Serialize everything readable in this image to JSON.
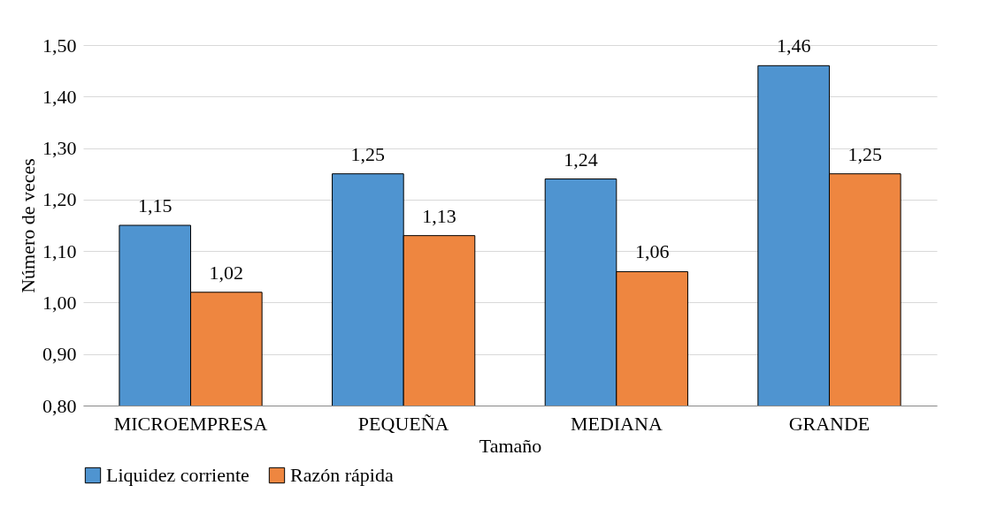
{
  "chart_data": {
    "type": "bar",
    "xlabel": "Tamaño",
    "ylabel": "Número de veces",
    "categories": [
      "MICROEMPRESA",
      "PEQUEÑA",
      "MEDIANA",
      "GRANDE"
    ],
    "series": [
      {
        "name": "Liquidez corriente",
        "color": "#4f94d0",
        "values": [
          1.15,
          1.25,
          1.24,
          1.46
        ],
        "value_labels": [
          "1,15",
          "1,25",
          "1,24",
          "1,46"
        ]
      },
      {
        "name": "Razón rápida",
        "color": "#ee8640",
        "values": [
          1.02,
          1.13,
          1.06,
          1.25
        ],
        "value_labels": [
          "1,02",
          "1,13",
          "1,06",
          "1,25"
        ]
      }
    ],
    "ylim": [
      0.8,
      1.5
    ],
    "yticks": [
      {
        "value": 0.8,
        "label": "0,80"
      },
      {
        "value": 0.9,
        "label": "0,90"
      },
      {
        "value": 1.0,
        "label": "1,00"
      },
      {
        "value": 1.1,
        "label": "1,10"
      },
      {
        "value": 1.2,
        "label": "1,20"
      },
      {
        "value": 1.3,
        "label": "1,30"
      },
      {
        "value": 1.4,
        "label": "1,40"
      },
      {
        "value": 1.5,
        "label": "1,50"
      }
    ],
    "grid": "y",
    "legend": "bottom"
  }
}
